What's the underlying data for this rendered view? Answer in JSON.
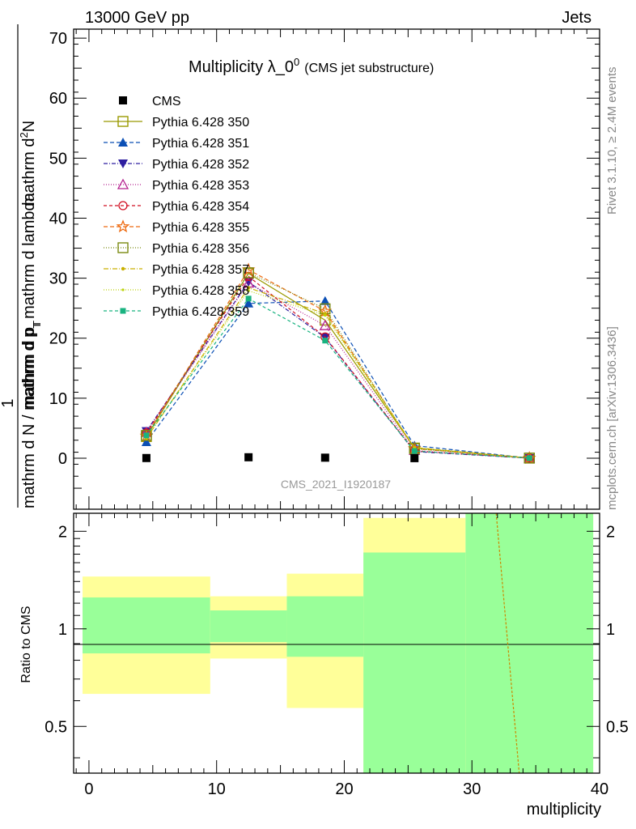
{
  "header": {
    "left": "13000 GeV pp",
    "right": "Jets"
  },
  "side": {
    "rivet": "Rivet 3.1.10, ≥ 2.4M events",
    "mcplots": "mcplots.cern.ch [arXiv:1306.3436]"
  },
  "chart_data": {
    "type": "line",
    "title_main": "Multiplicity λ_0",
    "title_sup": "0",
    "title_sub": "(CMS jet substructure)",
    "watermark": "CMS_2021_I1920187",
    "ylabel_num_prefix": "mathrm d",
    "ylabel_num_sup": "2",
    "ylabel_num_rest": "N",
    "ylabel_den_a": "mathrm d p",
    "ylabel_den_b": "mathrm d lambda",
    "ylabel_den_sub": "T",
    "ylabel_one": "1",
    "ylabel_lower_a": "mathrm d N / mathrm d p",
    "ylabel_lower_sub": "T",
    "xlabel": "multiplicity",
    "ratio_ylabel": "Ratio to CMS",
    "xlim": [
      -1.2,
      40
    ],
    "ylim": [
      -8.5,
      71.5
    ],
    "ratio_ylim": [
      0.3587,
      2.2733
    ],
    "x_ticks": [
      "0",
      "10",
      "20",
      "30",
      "40"
    ],
    "y_ticks": [
      "0",
      "10",
      "20",
      "30",
      "40",
      "50",
      "60",
      "70"
    ],
    "ratio_ticks": [
      "0.5",
      "1",
      "2"
    ],
    "x": [
      4.5,
      12.5,
      18.5,
      25.5,
      34.5
    ],
    "cms": [
      0.03,
      0.16,
      0.09,
      0.01,
      null
    ],
    "series": [
      {
        "name": "Pythia 6.428 350",
        "color": "#999900",
        "marker": "square-open",
        "dash": "",
        "values": [
          3.6,
          30.8,
          23.0,
          1.7,
          0.02
        ]
      },
      {
        "name": "Pythia 6.428 351",
        "color": "#0b4fb5",
        "marker": "triangle-up",
        "dash": "5,3",
        "values": [
          2.7,
          25.8,
          26.2,
          2.1,
          0.03
        ]
      },
      {
        "name": "Pythia 6.428 352",
        "color": "#2e1ea0",
        "marker": "triangle-down",
        "dash": "5,2,1,2",
        "values": [
          4.5,
          29.4,
          20.1,
          1.1,
          0.01
        ]
      },
      {
        "name": "Pythia 6.428 353",
        "color": "#b4208f",
        "marker": "triangle-open",
        "dash": "1,2",
        "values": [
          4.3,
          29.2,
          22.1,
          1.3,
          0.02
        ]
      },
      {
        "name": "Pythia 6.428 354",
        "color": "#d10f22",
        "marker": "circle-open",
        "dash": "4,3",
        "values": [
          4.2,
          30.3,
          20.2,
          1.2,
          0.02
        ]
      },
      {
        "name": "Pythia 6.428 355",
        "color": "#ee6a10",
        "marker": "star-open",
        "dash": "5,3",
        "values": [
          3.7,
          31.4,
          24.5,
          1.6,
          0.02
        ]
      },
      {
        "name": "Pythia 6.428 356",
        "color": "#7a8a10",
        "marker": "square-open",
        "dash": "1,2",
        "values": [
          3.8,
          30.9,
          24.9,
          1.6,
          0.02
        ]
      },
      {
        "name": "Pythia 6.428 357",
        "color": "#c9b000",
        "marker": "dot",
        "dash": "6,2,1,2",
        "values": [
          3.3,
          28.4,
          24.1,
          1.8,
          0.02
        ]
      },
      {
        "name": "Pythia 6.428 358",
        "color": "#bcd20a",
        "marker": "dot-small",
        "dash": "1,2",
        "values": [
          3.4,
          27.9,
          23.8,
          1.7,
          0.02
        ]
      },
      {
        "name": "Pythia 6.428 359",
        "color": "#19b380",
        "marker": "square-small",
        "dash": "4,3",
        "values": [
          3.8,
          26.6,
          19.6,
          1.2,
          0.02
        ]
      }
    ],
    "ratio_bands": [
      {
        "x0": -0.5,
        "x1": 9.5,
        "yellow": [
          0.63,
          1.45
        ],
        "green": [
          0.84,
          1.25
        ]
      },
      {
        "x0": 9.5,
        "x1": 15.5,
        "yellow": [
          0.81,
          1.26
        ],
        "green": [
          0.91,
          1.14
        ]
      },
      {
        "x0": 15.5,
        "x1": 21.5,
        "yellow": [
          0.57,
          1.48
        ],
        "green": [
          0.82,
          1.26
        ]
      },
      {
        "x0": 21.5,
        "x1": 29.5,
        "yellow": [
          0.3,
          2.2
        ],
        "green": [
          0.3,
          1.72
        ]
      },
      {
        "x0": 29.5,
        "x1": 39.5,
        "yellow": [
          0.3,
          2.3
        ],
        "green": [
          0.3,
          2.3
        ]
      }
    ],
    "ratio_line": {
      "x": [
        31.9,
        33.7
      ],
      "y": [
        2.3,
        0.36
      ],
      "color": "#cc8800"
    }
  }
}
